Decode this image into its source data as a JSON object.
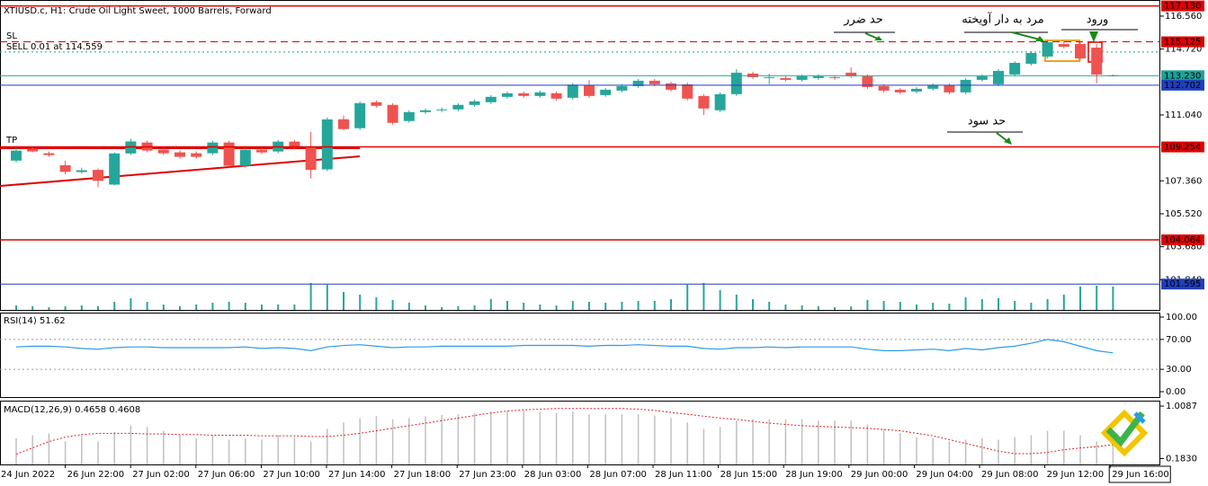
{
  "header": "XTIUSD.c, H1:  Crude Oil Light Sweet, 1000 Barrels, Forward",
  "chart_data": [
    {
      "type": "candlestick",
      "up_color": "#26a69a",
      "down_color": "#ef5350",
      "open": [
        108.49,
        109.15,
        108.9,
        108.23,
        107.85,
        107.97,
        107.15,
        108.89,
        109.5,
        109.1,
        108.95,
        108.9,
        108.9,
        109.5,
        108.2,
        109.1,
        109.0,
        109.55,
        109.25,
        108.0,
        110.8,
        110.3,
        111.75,
        111.6,
        110.7,
        111.2,
        111.3,
        111.35,
        111.6,
        111.75,
        112.05,
        112.25,
        112.1,
        112.25,
        112.0,
        112.7,
        112.15,
        112.4,
        112.65,
        112.95,
        112.8,
        112.75,
        112.1,
        111.3,
        112.2,
        113.35,
        113.1,
        113.1,
        113.0,
        113.1,
        113.15,
        113.4,
        113.2,
        112.65,
        112.45,
        112.35,
        112.5,
        112.7,
        112.3,
        113.0,
        112.75,
        113.3,
        113.9,
        114.3,
        115.0,
        115.0,
        114.8,
        113.25
      ],
      "high": [
        109.3,
        109.25,
        109.0,
        108.48,
        108.1,
        108.05,
        108.95,
        109.71,
        109.6,
        109.2,
        109.05,
        109.0,
        109.6,
        109.6,
        109.3,
        109.2,
        109.65,
        109.65,
        110.1,
        110.9,
        111.0,
        111.8,
        111.85,
        111.7,
        111.3,
        111.4,
        111.45,
        111.7,
        111.9,
        112.15,
        112.35,
        112.35,
        112.4,
        112.35,
        112.83,
        112.98,
        112.55,
        112.75,
        113.05,
        113.05,
        112.9,
        112.85,
        112.2,
        112.3,
        113.6,
        113.45,
        113.35,
        113.2,
        113.3,
        113.3,
        113.25,
        113.7,
        113.3,
        112.75,
        112.55,
        112.6,
        112.8,
        112.8,
        113.1,
        113.3,
        113.6,
        114.05,
        114.6,
        115.2,
        115.15,
        115.1,
        115.0,
        113.3
      ],
      "low": [
        108.38,
        108.95,
        108.7,
        107.72,
        107.75,
        107.0,
        107.1,
        108.8,
        108.95,
        108.8,
        108.6,
        108.6,
        108.8,
        108.1,
        108.1,
        108.85,
        108.9,
        109.1,
        107.5,
        107.9,
        110.2,
        110.2,
        111.45,
        110.5,
        110.6,
        111.1,
        111.2,
        111.25,
        111.5,
        111.65,
        111.95,
        112.0,
        112.0,
        111.85,
        111.9,
        112.0,
        112.05,
        112.3,
        112.55,
        112.65,
        112.35,
        111.85,
        111.04,
        111.2,
        112.1,
        113.05,
        112.75,
        112.9,
        112.9,
        113.0,
        113.0,
        113.1,
        112.5,
        112.3,
        112.2,
        112.25,
        112.4,
        112.2,
        112.2,
        112.9,
        112.65,
        113.2,
        113.8,
        114.2,
        114.75,
        114.1,
        112.8,
        113.2
      ],
      "close": [
        109.05,
        109.0,
        108.8,
        107.87,
        107.95,
        107.36,
        108.89,
        109.56,
        109.05,
        108.9,
        108.7,
        108.7,
        109.5,
        108.2,
        109.1,
        108.95,
        109.55,
        109.2,
        107.97,
        110.79,
        110.25,
        111.7,
        111.55,
        110.6,
        111.2,
        111.3,
        111.35,
        111.6,
        111.8,
        112.05,
        112.25,
        112.1,
        112.3,
        111.95,
        112.73,
        112.1,
        112.45,
        112.65,
        112.95,
        112.75,
        112.45,
        111.95,
        111.4,
        112.2,
        113.4,
        113.15,
        113.15,
        113.0,
        113.2,
        113.2,
        113.1,
        113.2,
        112.6,
        112.4,
        112.3,
        112.5,
        112.7,
        112.3,
        113.0,
        113.2,
        113.5,
        113.95,
        114.5,
        115.1,
        114.85,
        114.2,
        113.3,
        113.23
      ],
      "volume": {
        "color": "#26a69a",
        "ylim": [
          0,
          35
        ],
        "values": [
          5,
          4,
          3,
          4,
          5,
          4,
          9,
          13,
          9,
          6,
          4,
          6,
          8,
          9,
          8,
          6,
          6,
          6,
          30,
          28,
          20,
          17,
          14,
          11,
          8,
          5,
          3,
          4,
          5,
          12,
          10,
          8,
          6,
          5,
          10,
          9,
          8,
          9,
          10,
          10,
          12,
          28,
          30,
          22,
          17,
          12,
          9,
          6,
          5,
          4,
          3,
          4,
          11,
          10,
          9,
          6,
          8,
          7,
          14,
          12,
          13,
          10,
          8,
          12,
          17,
          26,
          27,
          26
        ]
      },
      "ylim": [
        100.15,
        117.46
      ],
      "yticks": [
        {
          "value": 116.56,
          "label": "116.560"
        },
        {
          "value": 114.72,
          "label": "114.720"
        },
        {
          "value": 111.04,
          "label": "111.040"
        },
        {
          "value": 107.36,
          "label": "107.360"
        },
        {
          "value": 105.52,
          "label": "105.520"
        },
        {
          "value": 103.68,
          "label": "103.680"
        },
        {
          "value": 101.84,
          "label": "101.840"
        }
      ],
      "levels": [
        {
          "value": 117.13,
          "label": "117.130",
          "color": "#e00000",
          "dash": false
        },
        {
          "value": 115.125,
          "label": "115.125",
          "color": "#e00000",
          "dash": true
        },
        {
          "value": 113.23,
          "label": "113.230",
          "color": "#1aa39a",
          "dash": false
        },
        {
          "value": 112.702,
          "label": "112.702",
          "color": "#1f3fbf",
          "dash": false
        },
        {
          "value": 109.254,
          "label": "109.254",
          "color": "#e00000",
          "dash": false
        },
        {
          "value": 104.064,
          "label": "104.064",
          "color": "#e00000",
          "dash": false
        },
        {
          "value": 101.595,
          "label": "101.595",
          "color": "#1f3fbf",
          "dash": false
        }
      ],
      "sell_level": 114.559,
      "sell_color": "#1aa39a",
      "sell_label": "SELL 0.01 at 114.559",
      "sl_label": "SL",
      "tp_label": "TP",
      "annotations": [
        "حد ضرر",
        "مرد به دار آویخته",
        "ورود",
        "حد سود"
      ],
      "x_labels": [
        "24 Jun 2022",
        "26 Jun 22:00",
        "27 Jun 02:00",
        "27 Jun 06:00",
        "27 Jun 10:00",
        "27 Jun 14:00",
        "27 Jun 18:00",
        "27 Jun 23:00",
        "28 Jun 03:00",
        "28 Jun 07:00",
        "28 Jun 11:00",
        "28 Jun 15:00",
        "28 Jun 19:00",
        "29 Jun 00:00",
        "29 Jun 04:00",
        "29 Jun 08:00",
        "29 Jun 12:00",
        "29 Jun 16:00"
      ]
    },
    {
      "type": "line",
      "title": "RSI(14) 51.62",
      "color": "#2e9be6",
      "values": [
        60,
        61,
        61,
        60,
        58,
        57,
        59,
        60,
        60,
        59,
        59,
        59,
        59,
        59,
        60,
        58,
        59,
        58,
        55,
        60,
        62,
        63,
        61,
        59,
        60,
        60,
        61,
        61,
        61,
        61,
        61,
        62,
        62,
        62,
        62,
        61,
        62,
        62,
        63,
        62,
        61,
        61,
        58,
        57,
        59,
        59,
        60,
        59,
        60,
        60,
        60,
        60,
        57,
        55,
        55,
        56,
        57,
        55,
        58,
        56,
        59,
        61,
        65,
        70,
        67,
        61,
        55,
        52
      ],
      "ylim": [
        -7.2,
        106
      ],
      "yticks": [
        {
          "value": 100,
          "label": "100.00"
        },
        {
          "value": 70,
          "label": "70.00"
        },
        {
          "value": 30,
          "label": "30.00"
        },
        {
          "value": 0,
          "label": "0.00"
        }
      ],
      "levels": [
        70,
        30
      ]
    },
    {
      "type": "macd",
      "title": "MACD(12,26,9) 0.4658 0.4608",
      "histogram": {
        "color": "#c0c0c0",
        "values": [
          0.5,
          0.55,
          0.58,
          0.45,
          0.55,
          0.45,
          0.6,
          0.7,
          0.68,
          0.62,
          0.55,
          0.5,
          0.55,
          0.48,
          0.5,
          0.48,
          0.55,
          0.52,
          0.45,
          0.65,
          0.75,
          0.82,
          0.85,
          0.8,
          0.82,
          0.85,
          0.87,
          0.88,
          0.9,
          0.92,
          0.93,
          0.93,
          0.92,
          0.9,
          0.92,
          0.88,
          0.88,
          0.88,
          0.88,
          0.86,
          0.82,
          0.75,
          0.65,
          0.68,
          0.78,
          0.8,
          0.8,
          0.8,
          0.8,
          0.78,
          0.78,
          0.78,
          0.72,
          0.65,
          0.58,
          0.52,
          0.5,
          0.45,
          0.48,
          0.5,
          0.48,
          0.52,
          0.55,
          0.62,
          0.62,
          0.55,
          0.45,
          0.4
        ]
      },
      "signal": {
        "color": "#e02020",
        "values": [
          0.25,
          0.35,
          0.45,
          0.52,
          0.56,
          0.58,
          0.58,
          0.58,
          0.57,
          0.57,
          0.56,
          0.56,
          0.55,
          0.55,
          0.55,
          0.54,
          0.54,
          0.54,
          0.53,
          0.53,
          0.55,
          0.58,
          0.62,
          0.66,
          0.7,
          0.74,
          0.78,
          0.82,
          0.86,
          0.9,
          0.93,
          0.95,
          0.96,
          0.97,
          0.97,
          0.97,
          0.97,
          0.97,
          0.96,
          0.94,
          0.91,
          0.88,
          0.85,
          0.82,
          0.8,
          0.77,
          0.74,
          0.72,
          0.7,
          0.69,
          0.68,
          0.67,
          0.66,
          0.64,
          0.62,
          0.58,
          0.54,
          0.48,
          0.42,
          0.36,
          0.3,
          0.26,
          0.26,
          0.28,
          0.32,
          0.35,
          0.37,
          0.4
        ]
      },
      "ylim": [
        0.09,
        1.08
      ],
      "yticks": [
        1.0087,
        {
          "value": 0.183,
          "label": "0.1830"
        }
      ]
    }
  ]
}
